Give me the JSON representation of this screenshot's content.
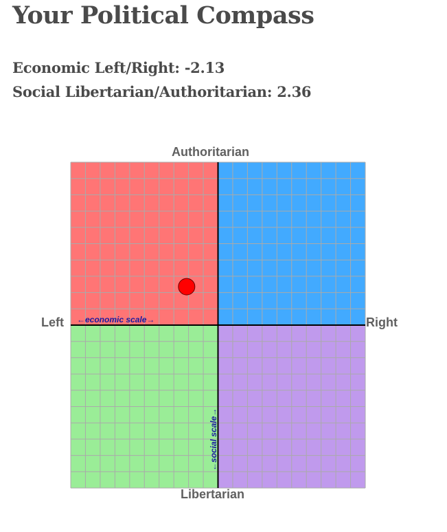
{
  "title": "Your Political Compass",
  "economic": {
    "label": "Economic Left/Right:",
    "value": -2.13,
    "text": "Economic Left/Right: -2.13"
  },
  "social": {
    "label": "Social Libertarian/Authoritarian:",
    "value": 2.36,
    "text": "Social Libertarian/Authoritarian: 2.36"
  },
  "compass": {
    "top_label": "Authoritarian",
    "bottom_label": "Libertarian",
    "left_label": "Left",
    "right_label": "Right",
    "economic_scale_label": "←economic scale→",
    "social_scale_label": "←social scale→",
    "range": [
      -10,
      10
    ],
    "colors": {
      "auth_left": "#ff7575",
      "auth_right": "#42aaff",
      "lib_left": "#9aed97",
      "lib_right": "#c09aed",
      "grid": "#aaaaaa",
      "dot": "#ff0000",
      "scale_text": "#1a1aa0"
    }
  }
}
